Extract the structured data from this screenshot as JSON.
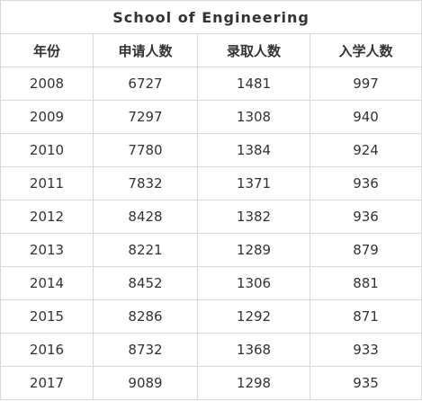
{
  "table": {
    "title": "School  of Engineering",
    "headers": [
      "年份",
      "申请人数",
      "录取人数",
      "入学人数"
    ],
    "rows": [
      [
        "2008",
        "6727",
        "1481",
        "997"
      ],
      [
        "2009",
        "7297",
        "1308",
        "940"
      ],
      [
        "2010",
        "7780",
        "1384",
        "924"
      ],
      [
        "2011",
        "7832",
        "1371",
        "936"
      ],
      [
        "2012",
        "8428",
        "1382",
        "936"
      ],
      [
        "2013",
        "8221",
        "1289",
        "879"
      ],
      [
        "2014",
        "8452",
        "1306",
        "881"
      ],
      [
        "2015",
        "8286",
        "1292",
        "871"
      ],
      [
        "2016",
        "8732",
        "1368",
        "933"
      ],
      [
        "2017",
        "9089",
        "1298",
        "935"
      ]
    ],
    "colors": {
      "border": "#d9d9d9",
      "text": "#333333",
      "background": "#ffffff"
    }
  }
}
